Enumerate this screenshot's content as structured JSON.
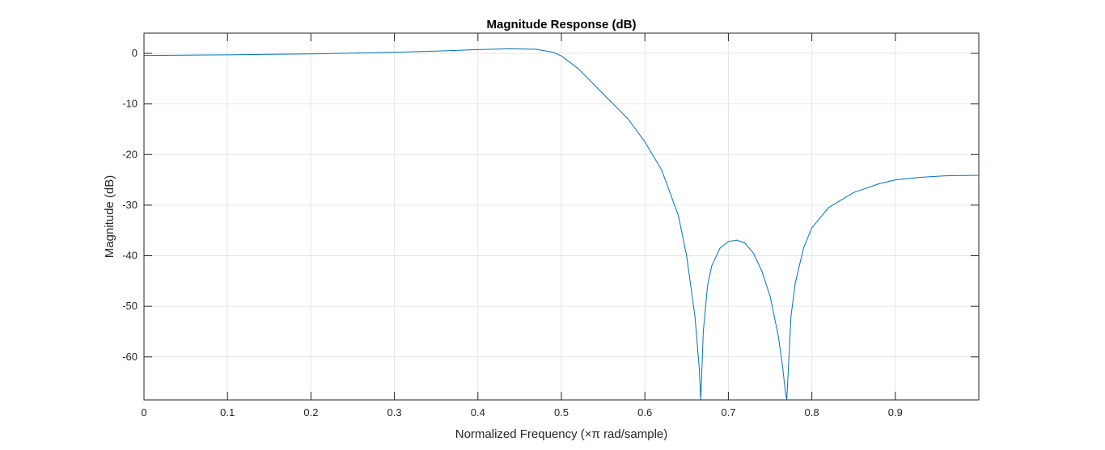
{
  "chart_data": {
    "type": "line",
    "title": "Magnitude Response (dB)",
    "xlabel": "Normalized Frequency (×π rad/sample)",
    "ylabel": "Magnitude (dB)",
    "xlim": [
      0,
      1
    ],
    "ylim": [
      -68.5,
      4
    ],
    "xticks": [
      0,
      0.1,
      0.2,
      0.3,
      0.4,
      0.5,
      0.6,
      0.7,
      0.8,
      0.9
    ],
    "xtick_labels": [
      "0",
      "0.1",
      "0.2",
      "0.3",
      "0.4",
      "0.5",
      "0.6",
      "0.7",
      "0.8",
      "0.9"
    ],
    "yticks": [
      0,
      -10,
      -20,
      -30,
      -40,
      -50,
      -60
    ],
    "ytick_labels": [
      "0",
      "-10",
      "-20",
      "-30",
      "-40",
      "-50",
      "-60"
    ],
    "grid": true,
    "line_color": "#0072BD",
    "series": [
      {
        "x": [
          0,
          0.05,
          0.1,
          0.15,
          0.2,
          0.25,
          0.3,
          0.35,
          0.4,
          0.44,
          0.47,
          0.49,
          0.5,
          0.52,
          0.55,
          0.58,
          0.6,
          0.62,
          0.64,
          0.65,
          0.66,
          0.665,
          0.667,
          0.67,
          0.675,
          0.68,
          0.69,
          0.7,
          0.71,
          0.72,
          0.73,
          0.74,
          0.75,
          0.76,
          0.765,
          0.768,
          0.77,
          0.772,
          0.775,
          0.78,
          0.79,
          0.8,
          0.82,
          0.85,
          0.88,
          0.9,
          0.93,
          0.96,
          1.0
        ],
        "y": [
          -0.4,
          -0.35,
          -0.3,
          -0.2,
          -0.1,
          0.05,
          0.2,
          0.45,
          0.75,
          0.9,
          0.8,
          0.2,
          -0.5,
          -3.0,
          -8.0,
          -13.0,
          -17.5,
          -23.0,
          -32.0,
          -40.0,
          -52.0,
          -62.0,
          -68.5,
          -55.0,
          -46.0,
          -42.0,
          -38.5,
          -37.2,
          -36.9,
          -37.5,
          -39.5,
          -43.0,
          -48.0,
          -56.0,
          -62.0,
          -66.5,
          -68.5,
          -62.0,
          -52.0,
          -45.5,
          -38.5,
          -34.5,
          -30.5,
          -27.5,
          -25.8,
          -25.0,
          -24.5,
          -24.2,
          -24.1
        ]
      }
    ]
  }
}
